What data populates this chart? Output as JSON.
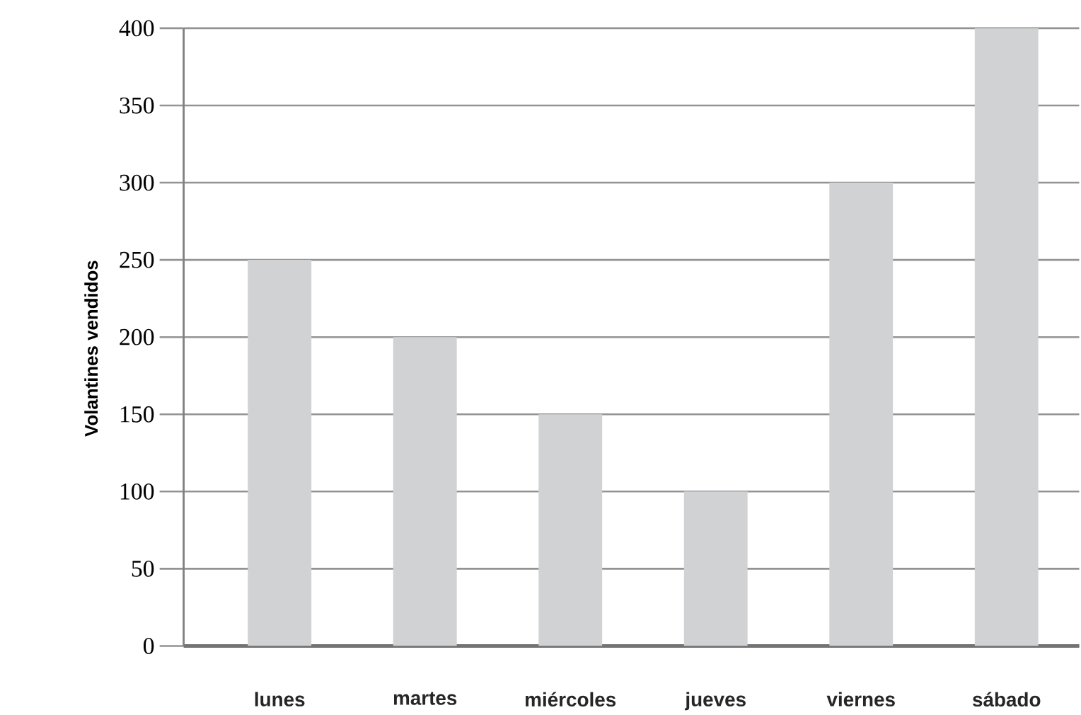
{
  "chart_data": {
    "type": "bar",
    "ylabel": "Volantines vendidos",
    "categories": [
      "lunes",
      "martes",
      "miércoles",
      "jueves",
      "viernes",
      "sábado"
    ],
    "values": [
      250,
      200,
      150,
      100,
      300,
      400
    ],
    "color": "#d0d2d3",
    "ylim": [
      0,
      400
    ],
    "yticks": [
      0,
      50,
      100,
      150,
      200,
      250,
      300,
      350,
      400
    ],
    "grid": "y"
  }
}
